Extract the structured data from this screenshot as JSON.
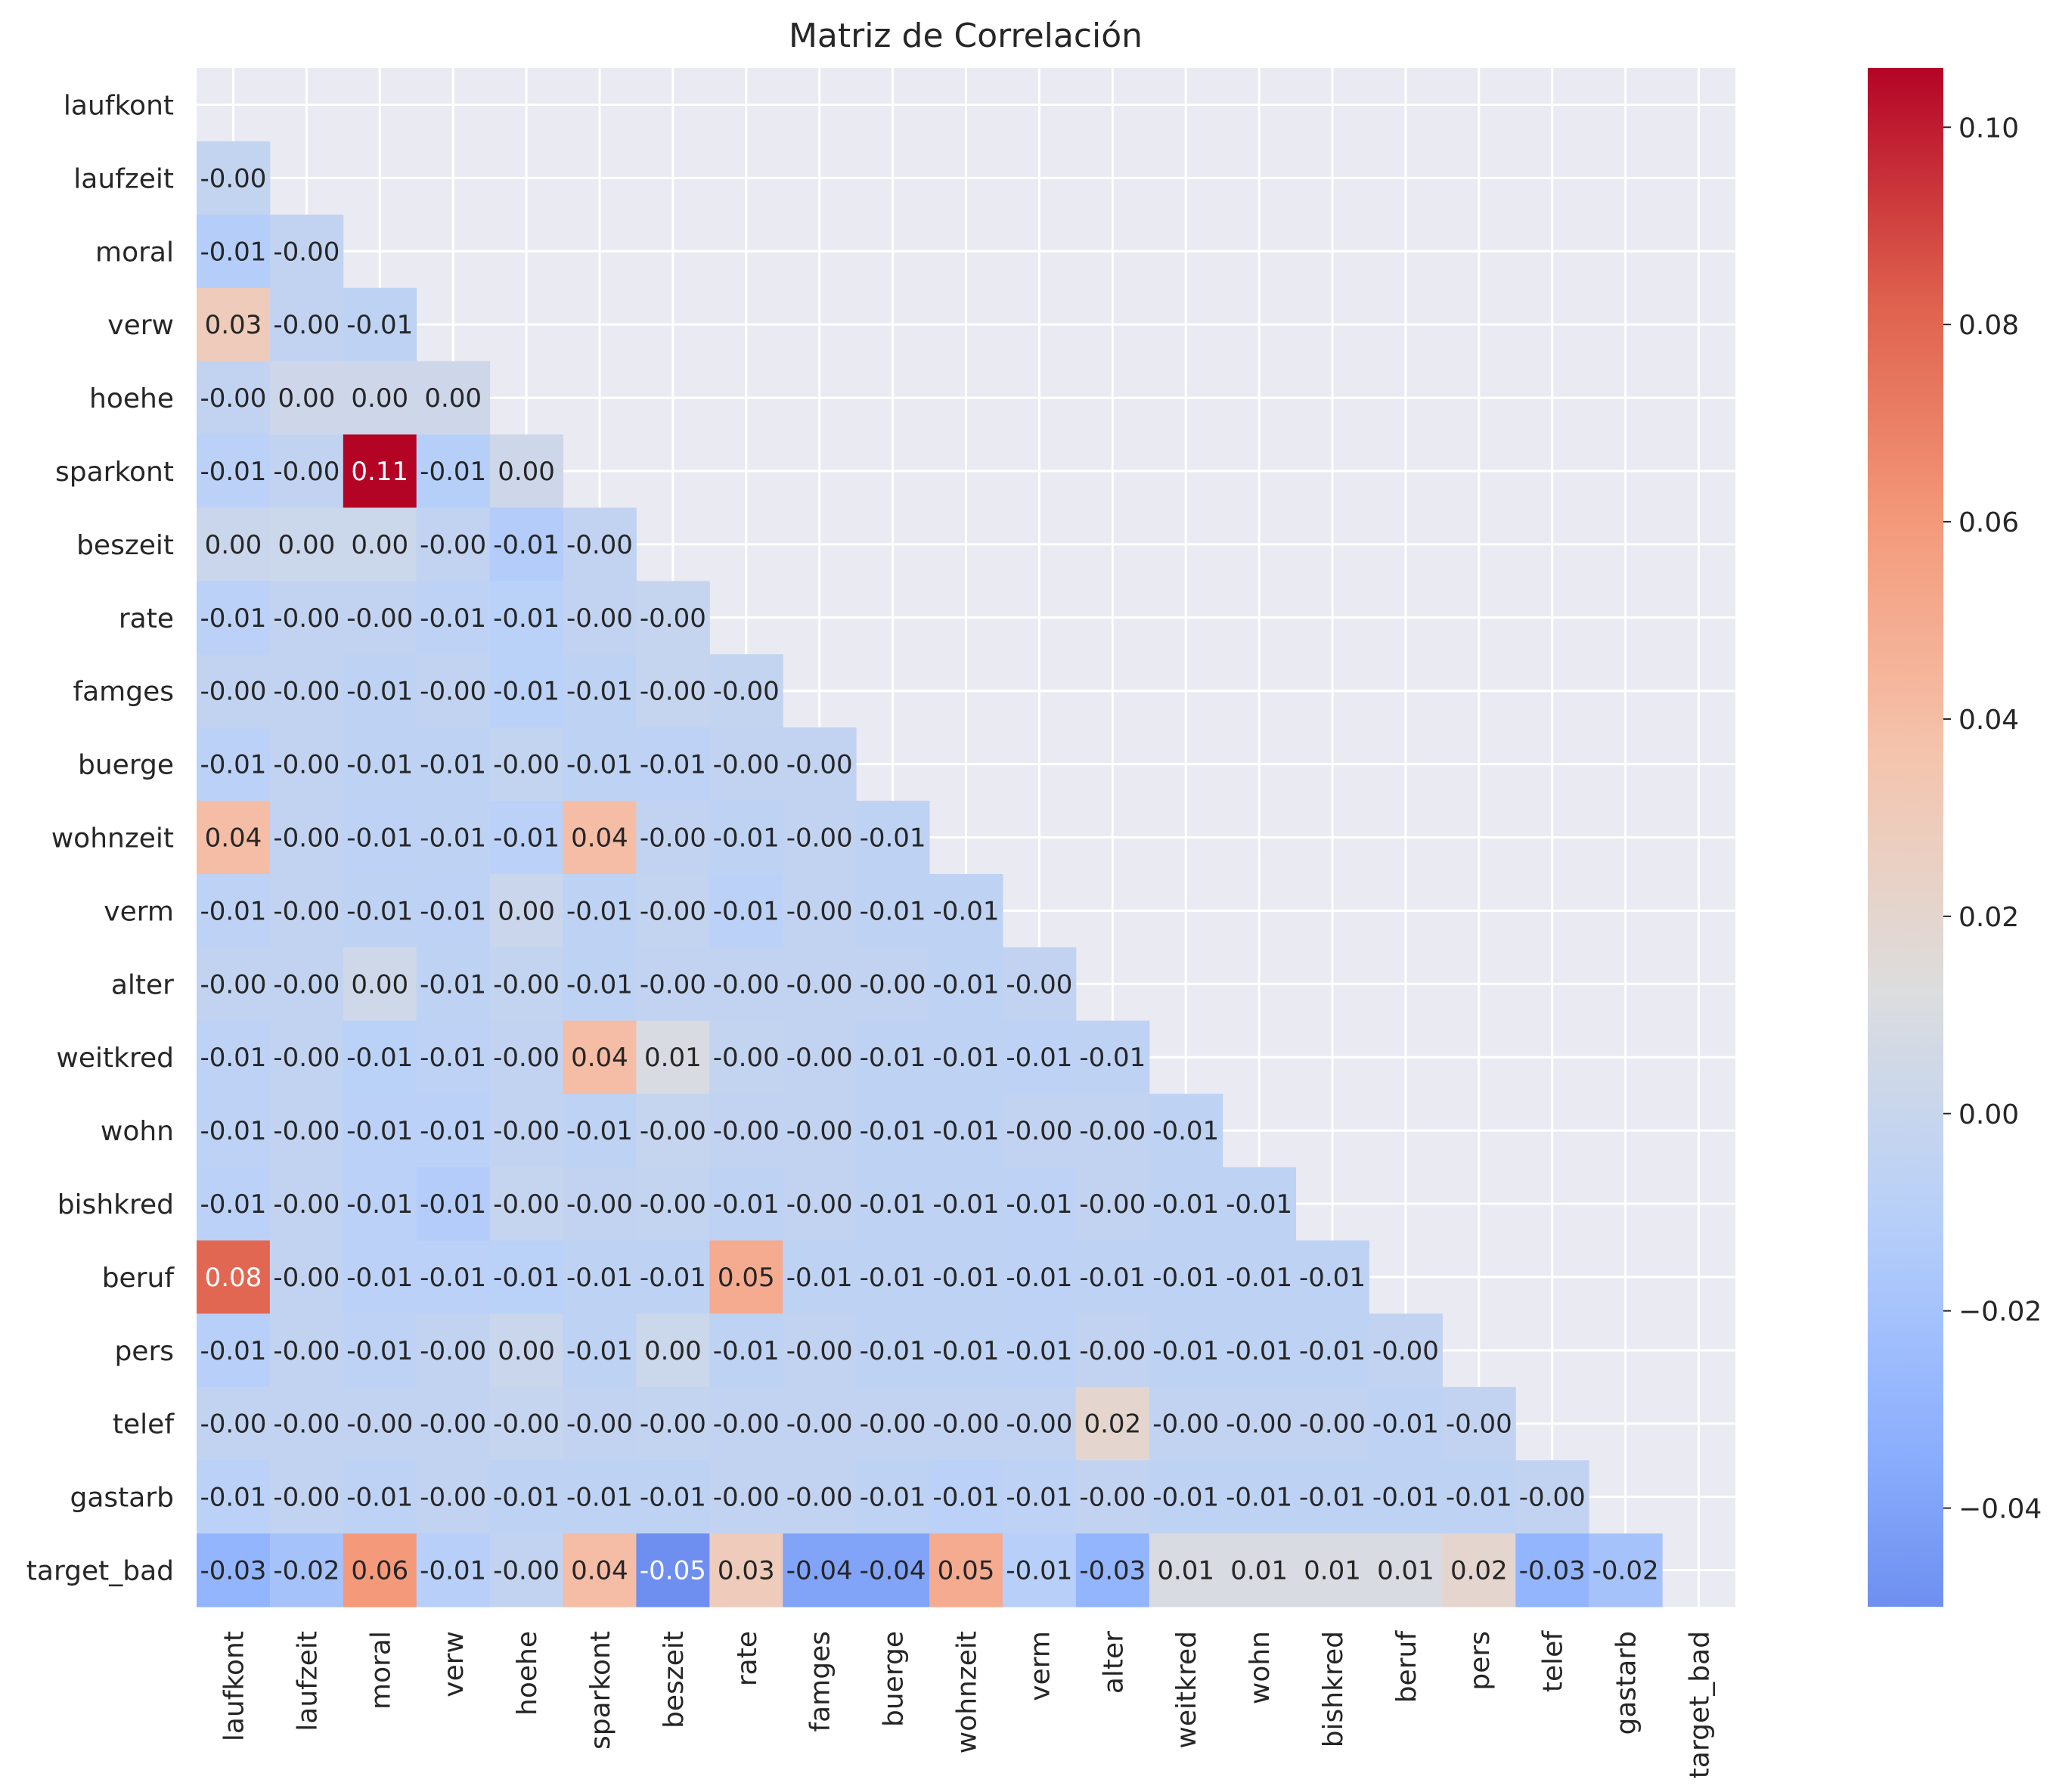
{
  "chart_data": {
    "type": "heatmap",
    "title": "Matriz de Correlación",
    "variables": [
      "laufkont",
      "laufzeit",
      "moral",
      "verw",
      "hoehe",
      "sparkont",
      "beszeit",
      "rate",
      "famges",
      "buerge",
      "wohnzeit",
      "verm",
      "alter",
      "weitkred",
      "wohn",
      "bishkred",
      "beruf",
      "pers",
      "telef",
      "gastarb",
      "target_bad"
    ],
    "mask": "upper triangle including diagonal",
    "grid": true,
    "colormap": "coolwarm",
    "value_range": [
      -0.05,
      0.106
    ],
    "colorbar": {
      "position": "right",
      "ticks": [
        -0.04,
        -0.02,
        0.0,
        0.02,
        0.04,
        0.06,
        0.08,
        0.1
      ],
      "tick_labels": [
        "−0.04",
        "−0.02",
        "0.00",
        "0.02",
        "0.04",
        "0.06",
        "0.08",
        "0.10"
      ]
    },
    "lower_triangle": [
      [],
      [
        -0.003
      ],
      [
        -0.012,
        -0.004
      ],
      [
        0.03,
        -0.004,
        -0.006
      ],
      [
        -0.004,
        0.003,
        0.003,
        0.003
      ],
      [
        -0.008,
        -0.004,
        0.106,
        -0.011,
        0.003
      ],
      [
        0.001,
        0.002,
        0.002,
        -0.004,
        -0.013,
        -0.004
      ],
      [
        -0.008,
        -0.004,
        -0.004,
        -0.007,
        -0.009,
        -0.004,
        -0.002
      ],
      [
        -0.004,
        -0.004,
        -0.006,
        -0.004,
        -0.009,
        -0.006,
        -0.002,
        -0.003
      ],
      [
        -0.008,
        -0.004,
        -0.006,
        -0.006,
        -0.003,
        -0.006,
        -0.007,
        -0.004,
        -0.004
      ],
      [
        0.04,
        -0.004,
        -0.007,
        -0.006,
        -0.008,
        0.04,
        -0.004,
        -0.006,
        -0.004,
        -0.006
      ],
      [
        -0.007,
        -0.004,
        -0.006,
        -0.007,
        0.001,
        -0.006,
        -0.003,
        -0.008,
        -0.004,
        -0.006,
        -0.006
      ],
      [
        -0.004,
        -0.004,
        0.004,
        -0.006,
        -0.003,
        -0.006,
        -0.004,
        -0.004,
        -0.004,
        -0.004,
        -0.006,
        -0.004
      ],
      [
        -0.007,
        -0.004,
        -0.009,
        -0.007,
        -0.004,
        0.04,
        0.01,
        -0.003,
        -0.004,
        -0.006,
        -0.006,
        -0.007,
        -0.006
      ],
      [
        -0.007,
        -0.004,
        -0.008,
        -0.008,
        -0.004,
        -0.006,
        -0.002,
        -0.004,
        -0.004,
        -0.006,
        -0.006,
        -0.004,
        -0.004,
        -0.006
      ],
      [
        -0.008,
        -0.004,
        -0.008,
        -0.013,
        -0.002,
        -0.004,
        -0.003,
        -0.006,
        -0.004,
        -0.006,
        -0.006,
        -0.007,
        -0.004,
        -0.006,
        -0.006
      ],
      [
        0.08,
        -0.004,
        -0.008,
        -0.008,
        -0.009,
        -0.006,
        -0.006,
        0.05,
        -0.006,
        -0.006,
        -0.006,
        -0.007,
        -0.006,
        -0.006,
        -0.006,
        -0.006
      ],
      [
        -0.01,
        -0.004,
        -0.007,
        -0.004,
        0.001,
        -0.006,
        0.002,
        -0.006,
        -0.004,
        -0.006,
        -0.006,
        -0.007,
        -0.004,
        -0.006,
        -0.006,
        -0.006,
        -0.004
      ],
      [
        -0.004,
        -0.004,
        -0.004,
        -0.004,
        -0.002,
        -0.004,
        -0.003,
        -0.004,
        -0.004,
        -0.004,
        -0.004,
        -0.004,
        0.02,
        -0.004,
        -0.004,
        -0.004,
        -0.006,
        -0.004
      ],
      [
        -0.008,
        -0.004,
        -0.007,
        -0.004,
        -0.006,
        -0.006,
        -0.006,
        -0.004,
        -0.004,
        -0.006,
        -0.008,
        -0.007,
        -0.004,
        -0.006,
        -0.006,
        -0.006,
        -0.006,
        -0.006,
        -0.004
      ],
      [
        -0.03,
        -0.02,
        0.06,
        -0.01,
        -0.004,
        0.04,
        -0.05,
        0.03,
        -0.04,
        -0.04,
        0.05,
        -0.01,
        -0.03,
        0.01,
        0.01,
        0.01,
        0.01,
        0.02,
        -0.03,
        -0.02
      ]
    ],
    "cell_labels": [
      [],
      [
        "-0.00"
      ],
      [
        "-0.01",
        "-0.00"
      ],
      [
        "0.03",
        "-0.00",
        "-0.01"
      ],
      [
        "-0.00",
        "0.00",
        "0.00",
        "0.00"
      ],
      [
        "-0.01",
        "-0.00",
        "0.11",
        "-0.01",
        "0.00"
      ],
      [
        "0.00",
        "0.00",
        "0.00",
        "-0.00",
        "-0.01",
        "-0.00"
      ],
      [
        "-0.01",
        "-0.00",
        "-0.00",
        "-0.01",
        "-0.01",
        "-0.00",
        "-0.00"
      ],
      [
        "-0.00",
        "-0.00",
        "-0.01",
        "-0.00",
        "-0.01",
        "-0.01",
        "-0.00",
        "-0.00"
      ],
      [
        "-0.01",
        "-0.00",
        "-0.01",
        "-0.01",
        "-0.00",
        "-0.01",
        "-0.01",
        "-0.00",
        "-0.00"
      ],
      [
        "0.04",
        "-0.00",
        "-0.01",
        "-0.01",
        "-0.01",
        "0.04",
        "-0.00",
        "-0.01",
        "-0.00",
        "-0.01"
      ],
      [
        "-0.01",
        "-0.00",
        "-0.01",
        "-0.01",
        "0.00",
        "-0.01",
        "-0.00",
        "-0.01",
        "-0.00",
        "-0.01",
        "-0.01"
      ],
      [
        "-0.00",
        "-0.00",
        "0.00",
        "-0.01",
        "-0.00",
        "-0.01",
        "-0.00",
        "-0.00",
        "-0.00",
        "-0.00",
        "-0.01",
        "-0.00"
      ],
      [
        "-0.01",
        "-0.00",
        "-0.01",
        "-0.01",
        "-0.00",
        "0.04",
        "0.01",
        "-0.00",
        "-0.00",
        "-0.01",
        "-0.01",
        "-0.01",
        "-0.01"
      ],
      [
        "-0.01",
        "-0.00",
        "-0.01",
        "-0.01",
        "-0.00",
        "-0.01",
        "-0.00",
        "-0.00",
        "-0.00",
        "-0.01",
        "-0.01",
        "-0.00",
        "-0.00",
        "-0.01"
      ],
      [
        "-0.01",
        "-0.00",
        "-0.01",
        "-0.01",
        "-0.00",
        "-0.00",
        "-0.00",
        "-0.01",
        "-0.00",
        "-0.01",
        "-0.01",
        "-0.01",
        "-0.00",
        "-0.01",
        "-0.01"
      ],
      [
        "0.08",
        "-0.00",
        "-0.01",
        "-0.01",
        "-0.01",
        "-0.01",
        "-0.01",
        "0.05",
        "-0.01",
        "-0.01",
        "-0.01",
        "-0.01",
        "-0.01",
        "-0.01",
        "-0.01",
        "-0.01"
      ],
      [
        "-0.01",
        "-0.00",
        "-0.01",
        "-0.00",
        "0.00",
        "-0.01",
        "0.00",
        "-0.01",
        "-0.00",
        "-0.01",
        "-0.01",
        "-0.01",
        "-0.00",
        "-0.01",
        "-0.01",
        "-0.01",
        "-0.00"
      ],
      [
        "-0.00",
        "-0.00",
        "-0.00",
        "-0.00",
        "-0.00",
        "-0.00",
        "-0.00",
        "-0.00",
        "-0.00",
        "-0.00",
        "-0.00",
        "-0.00",
        "0.02",
        "-0.00",
        "-0.00",
        "-0.00",
        "-0.01",
        "-0.00"
      ],
      [
        "-0.01",
        "-0.00",
        "-0.01",
        "-0.00",
        "-0.01",
        "-0.01",
        "-0.01",
        "-0.00",
        "-0.00",
        "-0.01",
        "-0.01",
        "-0.01",
        "-0.00",
        "-0.01",
        "-0.01",
        "-0.01",
        "-0.01",
        "-0.01",
        "-0.00"
      ],
      [
        "-0.03",
        "-0.02",
        "0.06",
        "-0.01",
        "-0.00",
        "0.04",
        "-0.05",
        "0.03",
        "-0.04",
        "-0.04",
        "0.05",
        "-0.01",
        "-0.03",
        "0.01",
        "0.01",
        "0.01",
        "0.01",
        "0.02",
        "-0.03",
        "-0.02"
      ]
    ]
  }
}
